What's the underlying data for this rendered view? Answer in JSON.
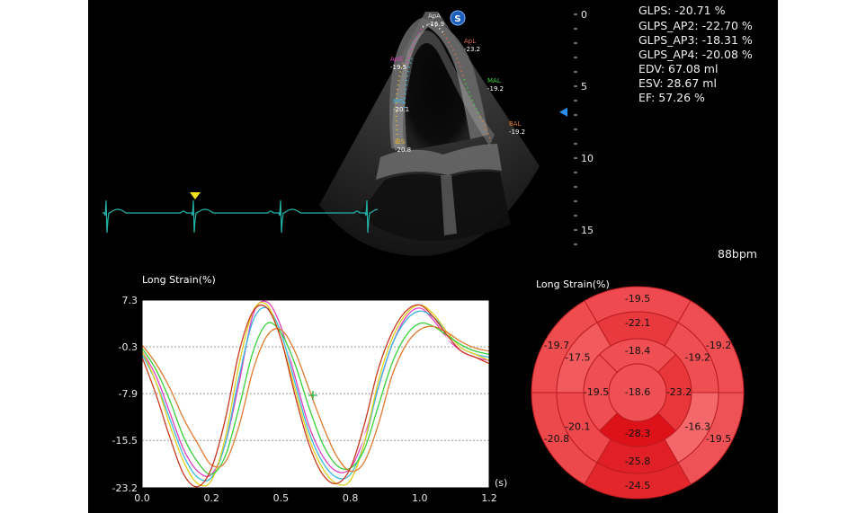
{
  "metrics": {
    "glps": "GLPS: -20.71 %",
    "glps_ap2": "GLPS_AP2: -22.70 %",
    "glps_ap3": "GLPS_AP3: -18.31 %",
    "glps_ap4": "GLPS_AP4: -20.08 %",
    "edv": "EDV: 67.08 ml",
    "esv": "ESV: 28.67 ml",
    "ef": "EF: 57.26 %"
  },
  "heart_rate": "88bpm",
  "depth_scale": {
    "labels": [
      "0",
      "5",
      "10",
      "15"
    ],
    "values": [
      0,
      5,
      10,
      15
    ],
    "max": 16,
    "focus_depth": 6.8
  },
  "echo_labels": [
    {
      "name": "ApA",
      "value": "-16.9",
      "color": "#e0e0e0"
    },
    {
      "name": "ApL",
      "value": "-23.2",
      "color": "#e06a4a"
    },
    {
      "name": "ApS",
      "value": "-19.5",
      "color": "#e040c0"
    },
    {
      "name": "MAL",
      "value": "-19.2",
      "color": "#39d13a"
    },
    {
      "name": "MIS",
      "value": "-20.1",
      "color": "#3ab7e0"
    },
    {
      "name": "BAL",
      "value": "-19.2",
      "color": "#e07a30"
    },
    {
      "name": "BIS",
      "value": "-20.8",
      "color": "#e0b030"
    }
  ],
  "logo_text": "S",
  "strain_chart": {
    "title": "Long Strain(%)",
    "x_unit": "(s)",
    "x_ticks": [
      "0.0",
      "0.2",
      "0.5",
      "0.8",
      "1.0",
      "1.2"
    ],
    "y_ticks": [
      "7.3",
      "-0.3",
      "-7.9",
      "-15.5",
      "-23.2"
    ]
  },
  "chart_data": {
    "type": "line",
    "title": "Long Strain(%)",
    "xlabel": "(s)",
    "ylabel": "",
    "xlim": [
      0,
      1.25
    ],
    "ylim": [
      -23.2,
      7.3
    ],
    "x": [
      0,
      0.05,
      0.1,
      0.15,
      0.2,
      0.25,
      0.3,
      0.35,
      0.4,
      0.45,
      0.5,
      0.55,
      0.6,
      0.65,
      0.7,
      0.75,
      0.8,
      0.85,
      0.9,
      0.95,
      1.0,
      1.05,
      1.1,
      1.15,
      1.2,
      1.25
    ],
    "series": [
      {
        "color": "#e040c0",
        "values": [
          -1,
          -5,
          -11,
          -17,
          -20.5,
          -21,
          -16,
          -6,
          5,
          7,
          3,
          -5,
          -13,
          -18,
          -20.5,
          -20,
          -15,
          -7,
          0,
          4.5,
          6,
          4,
          1,
          -1,
          -2,
          -2.5
        ]
      },
      {
        "color": "#ffffff",
        "values": [
          -0.5,
          -4,
          -8,
          -13,
          -17,
          -20,
          -18,
          -10,
          1,
          5,
          2,
          -4,
          -11,
          -17,
          -19.5,
          -19,
          -15,
          -9,
          -2,
          2,
          4,
          3,
          1,
          -0.5,
          -1.5,
          -2
        ]
      },
      {
        "color": "#3ab7e0",
        "values": [
          -1.5,
          -6,
          -12,
          -18,
          -21.5,
          -21.5,
          -16,
          -5,
          4,
          6,
          2,
          -6,
          -14,
          -19,
          -21.5,
          -21,
          -16,
          -7,
          0,
          4,
          5.5,
          4.5,
          2,
          -0.5,
          -1.5,
          -2
        ]
      },
      {
        "color": "#e0d020",
        "values": [
          -1,
          -6,
          -13,
          -19,
          -22.5,
          -22,
          -15,
          -3,
          5.5,
          6.5,
          1,
          -7,
          -15,
          -20,
          -22.5,
          -22,
          -16,
          -6,
          1,
          5,
          6.5,
          5,
          2,
          -0.5,
          -1.5,
          -2.5
        ]
      },
      {
        "color": "#39d13a",
        "values": [
          -0.5,
          -4,
          -9,
          -15,
          -19,
          -21,
          -18,
          -10,
          -1,
          3.5,
          2,
          -3,
          -10,
          -16,
          -19.5,
          -20,
          -17,
          -10,
          -3,
          1.5,
          3.5,
          3,
          1.5,
          0,
          -1,
          -1.5
        ]
      },
      {
        "color": "#e07a30",
        "values": [
          0,
          -3,
          -7,
          -12,
          -16,
          -19.5,
          -19,
          -13,
          -4,
          1.5,
          2.5,
          -1,
          -7,
          -13,
          -18,
          -20.5,
          -19,
          -13,
          -5,
          0,
          2.5,
          3,
          2,
          0.5,
          -0.5,
          -1
        ]
      },
      {
        "color": "#c83a20",
        "values": [
          -2,
          -8,
          -15,
          -21,
          -23,
          -20,
          -12,
          -1,
          5.5,
          6,
          1,
          -8,
          -16,
          -21,
          -22.5,
          -20,
          -13,
          -4,
          2,
          5.5,
          6.5,
          4.5,
          1.5,
          -1,
          -2,
          -3
        ]
      }
    ]
  },
  "bullseye": {
    "title": "Long Strain(%)",
    "outer": [
      "-19.5",
      "-19.2",
      "-19.5",
      "-24.5",
      "-20.8",
      "-19.7"
    ],
    "middle": [
      "-22.1",
      "-19.2",
      "-16.3",
      "-25.8",
      "-20.1",
      "-17.5"
    ],
    "inner": [
      "-18.4",
      "-23.2",
      "-28.3",
      "-19.5"
    ],
    "apex": "-18.6",
    "colors": {
      "outer": [
        "#ef4a4f",
        "#ee4e52",
        "#ef5256",
        "#e3262c",
        "#ed484c",
        "#ef4c50"
      ],
      "middle": [
        "#e8393e",
        "#ef4e52",
        "#f4686b",
        "#e02026",
        "#ee484c",
        "#f25a5e"
      ],
      "inner": [
        "#ef4e52",
        "#e8363b",
        "#dd1218",
        "#ef4e52"
      ],
      "apex": "#ef5054"
    }
  }
}
